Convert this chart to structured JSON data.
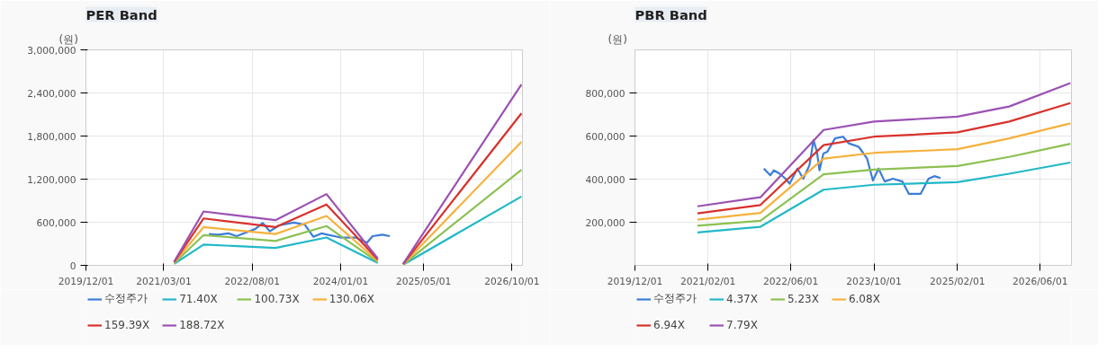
{
  "chart_data": [
    {
      "type": "line",
      "title": "PER Band",
      "ylabel": "(원)",
      "xlim": [
        "2019-12-01",
        "2026-12-01"
      ],
      "xticks": [
        {
          "value": "2019-12-01",
          "label": "2019/12/01"
        },
        {
          "value": "2021-03-01",
          "label": "2021/03/01"
        },
        {
          "value": "2022-08-01",
          "label": "2022/08/01"
        },
        {
          "value": "2024-01-01",
          "label": "2024/01/01"
        },
        {
          "value": "2025-05-01",
          "label": "2025/05/01"
        },
        {
          "value": "2026-10-01",
          "label": "2026/10/01"
        }
      ],
      "ylim": [
        0,
        3000000
      ],
      "yticks": [
        {
          "value": 0,
          "label": "0"
        },
        {
          "value": 600000,
          "label": "600,000"
        },
        {
          "value": 1200000,
          "label": "1,200,000"
        },
        {
          "value": 1800000,
          "label": "1,800,000"
        },
        {
          "value": 2400000,
          "label": "2,400,000"
        },
        {
          "value": 3000000,
          "label": "3,000,000"
        }
      ],
      "grid": true,
      "legend": "bottom",
      "line_style": "solid",
      "marker": "none",
      "series": [
        {
          "name": "수정주가",
          "color": "#3b7dd8",
          "x": [
            "2021-11-20",
            "2022-01-15",
            "2022-03-15",
            "2022-05-01",
            "2022-08-20",
            "2022-10-01",
            "2022-11-12",
            "2023-01-05",
            "2023-04-01",
            "2023-06-05",
            "2023-07-25",
            "2023-09-10",
            "2024-01-01",
            "2024-03-28",
            "2024-06-03",
            "2024-07-06",
            "2024-09-01",
            "2024-10-15"
          ],
          "values": [
            435000,
            426000,
            445000,
            406000,
            508000,
            590000,
            474000,
            556000,
            595000,
            566000,
            397000,
            445000,
            387000,
            387000,
            315000,
            406000,
            426000,
            406000
          ]
        },
        {
          "name": "71.40X",
          "color": "#22b8c8",
          "x": [
            "2021-05-01",
            "2021-10-20",
            "2022-12-15",
            "2023-10-10",
            "2024-08-05",
            "2024-10-01",
            "2025-01-01",
            "2026-11-25"
          ],
          "values": [
            20000,
            290000,
            242000,
            387000,
            34000,
            null,
            10000,
            958000
          ]
        },
        {
          "name": "100.73X",
          "color": "#8cc152",
          "x": [
            "2021-05-01",
            "2021-10-20",
            "2022-12-15",
            "2023-10-10",
            "2024-08-05",
            "2024-10-01",
            "2025-01-01",
            "2026-11-25"
          ],
          "values": [
            28000,
            421000,
            339000,
            547000,
            48000,
            null,
            12000,
            1331000
          ]
        },
        {
          "name": "130.06X",
          "color": "#f6b13c",
          "x": [
            "2021-05-01",
            "2021-10-20",
            "2022-12-15",
            "2023-10-10",
            "2024-08-05",
            "2024-10-01",
            "2025-01-01",
            "2026-11-25"
          ],
          "values": [
            36000,
            532000,
            436000,
            687000,
            63000,
            null,
            15000,
            1718000
          ]
        },
        {
          "name": "159.39X",
          "color": "#d9312b",
          "x": [
            "2021-05-01",
            "2021-10-20",
            "2022-12-15",
            "2023-10-10",
            "2024-08-05",
            "2024-10-01",
            "2025-01-01",
            "2026-11-25"
          ],
          "values": [
            44000,
            653000,
            532000,
            847000,
            82000,
            null,
            18000,
            2115000
          ]
        },
        {
          "name": "188.72X",
          "color": "#9b51b3",
          "x": [
            "2021-05-01",
            "2021-10-20",
            "2022-12-15",
            "2023-10-10",
            "2024-08-05",
            "2024-10-01",
            "2025-01-01",
            "2026-11-25"
          ],
          "values": [
            52000,
            750000,
            629000,
            992000,
            97000,
            null,
            22000,
            2516000
          ]
        }
      ]
    },
    {
      "type": "line",
      "title": "PBR Band",
      "ylabel": "(원)",
      "xlim": [
        "2019-12-01",
        "2026-12-01"
      ],
      "xticks": [
        {
          "value": "2019-12-01",
          "label": "2019/12/01"
        },
        {
          "value": "2021-02-01",
          "label": "2021/02/01"
        },
        {
          "value": "2022-06-01",
          "label": "2022/06/01"
        },
        {
          "value": "2023-10-01",
          "label": "2023/10/01"
        },
        {
          "value": "2025-02-01",
          "label": "2025/02/01"
        },
        {
          "value": "2026-06-01",
          "label": "2026/06/01"
        }
      ],
      "ylim": [
        0,
        1000000
      ],
      "yticks": [
        {
          "value": 200000,
          "label": "200,000"
        },
        {
          "value": 400000,
          "label": "400,000"
        },
        {
          "value": 600000,
          "label": "600,000"
        },
        {
          "value": 800000,
          "label": "800,000"
        }
      ],
      "grid": true,
      "legend": "bottom",
      "line_style": "solid",
      "marker": "none",
      "series": [
        {
          "name": "수정주가",
          "color": "#3b7dd8",
          "x": [
            "2021-12-25",
            "2022-02-01",
            "2022-02-22",
            "2022-03-28",
            "2022-05-01",
            "2022-05-25",
            "2022-07-10",
            "2022-08-13",
            "2022-09-18",
            "2022-10-12",
            "2022-11-01",
            "2022-11-16",
            "2022-12-09",
            "2023-01-01",
            "2023-02-15",
            "2023-04-03",
            "2023-05-07",
            "2023-07-04",
            "2023-08-22",
            "2023-09-25",
            "2023-10-28",
            "2023-12-03",
            "2024-01-19",
            "2024-03-16",
            "2024-04-22",
            "2024-07-01",
            "2024-08-16",
            "2024-09-19",
            "2024-10-25"
          ],
          "values": [
            449000,
            418000,
            441000,
            425000,
            402000,
            379000,
            449000,
            402000,
            464000,
            581000,
            527000,
            441000,
            519000,
            527000,
            589000,
            597000,
            566000,
            550000,
            495000,
            394000,
            449000,
            389000,
            402000,
            389000,
            332000,
            332000,
            402000,
            414000,
            405000
          ]
        },
        {
          "name": "4.37X",
          "color": "#22b8c8",
          "x": [
            "2020-12-01",
            "2021-12-05",
            "2022-12-10",
            "2023-10-01",
            "2025-02-01",
            "2025-12-01",
            "2026-11-25"
          ],
          "values": [
            153000,
            179000,
            351000,
            374000,
            386000,
            425000,
            477000
          ]
        },
        {
          "name": "5.23X",
          "color": "#8cc152",
          "x": [
            "2020-12-01",
            "2021-12-05",
            "2022-12-10",
            "2023-10-01",
            "2025-02-01",
            "2025-12-01",
            "2026-11-25"
          ],
          "values": [
            184000,
            207000,
            422000,
            444000,
            461000,
            503000,
            564000
          ]
        },
        {
          "name": "6.08X",
          "color": "#f6b13c",
          "x": [
            "2020-12-01",
            "2021-12-05",
            "2022-12-10",
            "2023-10-01",
            "2025-02-01",
            "2025-12-01",
            "2026-11-25"
          ],
          "values": [
            212000,
            243000,
            495000,
            522000,
            539000,
            589000,
            659000
          ]
        },
        {
          "name": "6.94X",
          "color": "#d9312b",
          "x": [
            "2020-12-01",
            "2021-12-05",
            "2022-12-10",
            "2023-10-01",
            "2025-02-01",
            "2025-12-01",
            "2026-11-25"
          ],
          "values": [
            241000,
            280000,
            558000,
            597000,
            617000,
            667000,
            753000
          ]
        },
        {
          "name": "7.79X",
          "color": "#9b51b3",
          "x": [
            "2020-12-01",
            "2021-12-05",
            "2022-12-10",
            "2023-10-01",
            "2025-02-01",
            "2025-12-01",
            "2026-11-25"
          ],
          "values": [
            274000,
            316000,
            628000,
            667000,
            690000,
            737000,
            846000
          ]
        }
      ]
    }
  ]
}
